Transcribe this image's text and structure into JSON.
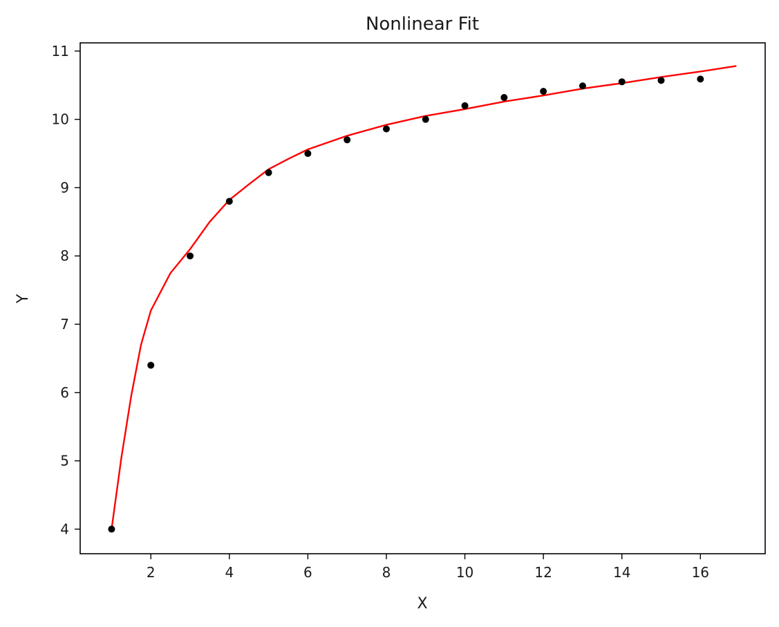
{
  "chart_data": {
    "type": "scatter",
    "title": "Nonlinear Fit",
    "xlabel": "X",
    "ylabel": "Y",
    "xlim": [
      0.2,
      17.65
    ],
    "ylim": [
      3.64,
      11.12
    ],
    "x_ticks": [
      2,
      4,
      6,
      8,
      10,
      12,
      14,
      16
    ],
    "y_ticks": [
      4,
      5,
      6,
      7,
      8,
      9,
      10,
      11
    ],
    "grid": false,
    "legend": "none",
    "series": [
      {
        "kind": "points",
        "color": "#000000",
        "x": [
          1,
          2,
          3,
          4,
          5,
          6,
          7,
          8,
          9,
          10,
          11,
          12,
          13,
          14,
          15,
          16
        ],
        "y": [
          4.0,
          6.4,
          8.0,
          8.8,
          9.22,
          9.5,
          9.7,
          9.86,
          10.0,
          10.2,
          10.32,
          10.41,
          10.49,
          10.55,
          10.57,
          10.59
        ]
      },
      {
        "kind": "line",
        "color": "#ff0000",
        "x": [
          1,
          1.25,
          1.5,
          1.75,
          2,
          2.5,
          3,
          3.5,
          4,
          4.5,
          5,
          5.5,
          6,
          7,
          8,
          9,
          10,
          11,
          12,
          13,
          14,
          15,
          16,
          16.9
        ],
        "y": [
          4.0,
          5.05,
          5.95,
          6.7,
          7.2,
          7.75,
          8.1,
          8.5,
          8.82,
          9.05,
          9.27,
          9.42,
          9.56,
          9.76,
          9.92,
          10.05,
          10.15,
          10.26,
          10.35,
          10.45,
          10.53,
          10.62,
          10.7,
          10.78
        ]
      }
    ]
  }
}
